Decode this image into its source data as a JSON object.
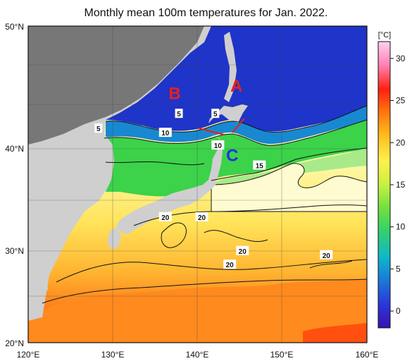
{
  "title": "Monthly mean 100m temperatures for Jan. 2022.",
  "colors": {
    "land": "#cfcfcf",
    "land_shadow": "#5a5a5a",
    "sea_ice_white": "#f5f5f5",
    "annotation_red": "#e8201c",
    "annotation_blue": "#2233dd"
  },
  "axes": {
    "lon_ticks": [
      "120°E",
      "130°E",
      "140°E",
      "150°E",
      "160°E"
    ],
    "lat_ticks": [
      "50°N",
      "40°N",
      "30°N",
      "20°N"
    ]
  },
  "colorbar": {
    "unit_label": "[°C]",
    "tick_labels": [
      "0",
      "5",
      "10",
      "15",
      "20",
      "25",
      "30"
    ],
    "range": [
      -2,
      32
    ],
    "stops": [
      "#3a10b0",
      "#2a38d8",
      "#1a7ad8",
      "#10b8c8",
      "#30d070",
      "#70e040",
      "#c8f040",
      "#fff050",
      "#ffc020",
      "#ff7a10",
      "#ff2010",
      "#ff80b0",
      "#ffd0f0"
    ]
  },
  "contour_labels": [
    {
      "text": "5",
      "lon": 128.3,
      "lat": 40.3
    },
    {
      "text": "5",
      "lon": 137.8,
      "lat": 41.7
    },
    {
      "text": "5",
      "lon": 142.1,
      "lat": 41.7
    },
    {
      "text": "10",
      "lon": 136.2,
      "lat": 39.9
    },
    {
      "text": "10",
      "lon": 142.4,
      "lat": 38.7
    },
    {
      "text": "15",
      "lon": 147.3,
      "lat": 36.8
    },
    {
      "text": "20",
      "lon": 136.2,
      "lat": 31.9
    },
    {
      "text": "20",
      "lon": 140.5,
      "lat": 31.9
    },
    {
      "text": "20",
      "lon": 145.3,
      "lat": 28.7
    },
    {
      "text": "20",
      "lon": 143.8,
      "lat": 27.4
    },
    {
      "text": "20",
      "lon": 155.2,
      "lat": 28.3
    }
  ],
  "markers": [
    {
      "text": "A",
      "lon": 144.6,
      "lat": 43.8
    },
    {
      "text": "B",
      "lon": 137.3,
      "lat": 43.1
    },
    {
      "text": "C",
      "lon": 144.1,
      "lat": 37.2
    }
  ]
}
